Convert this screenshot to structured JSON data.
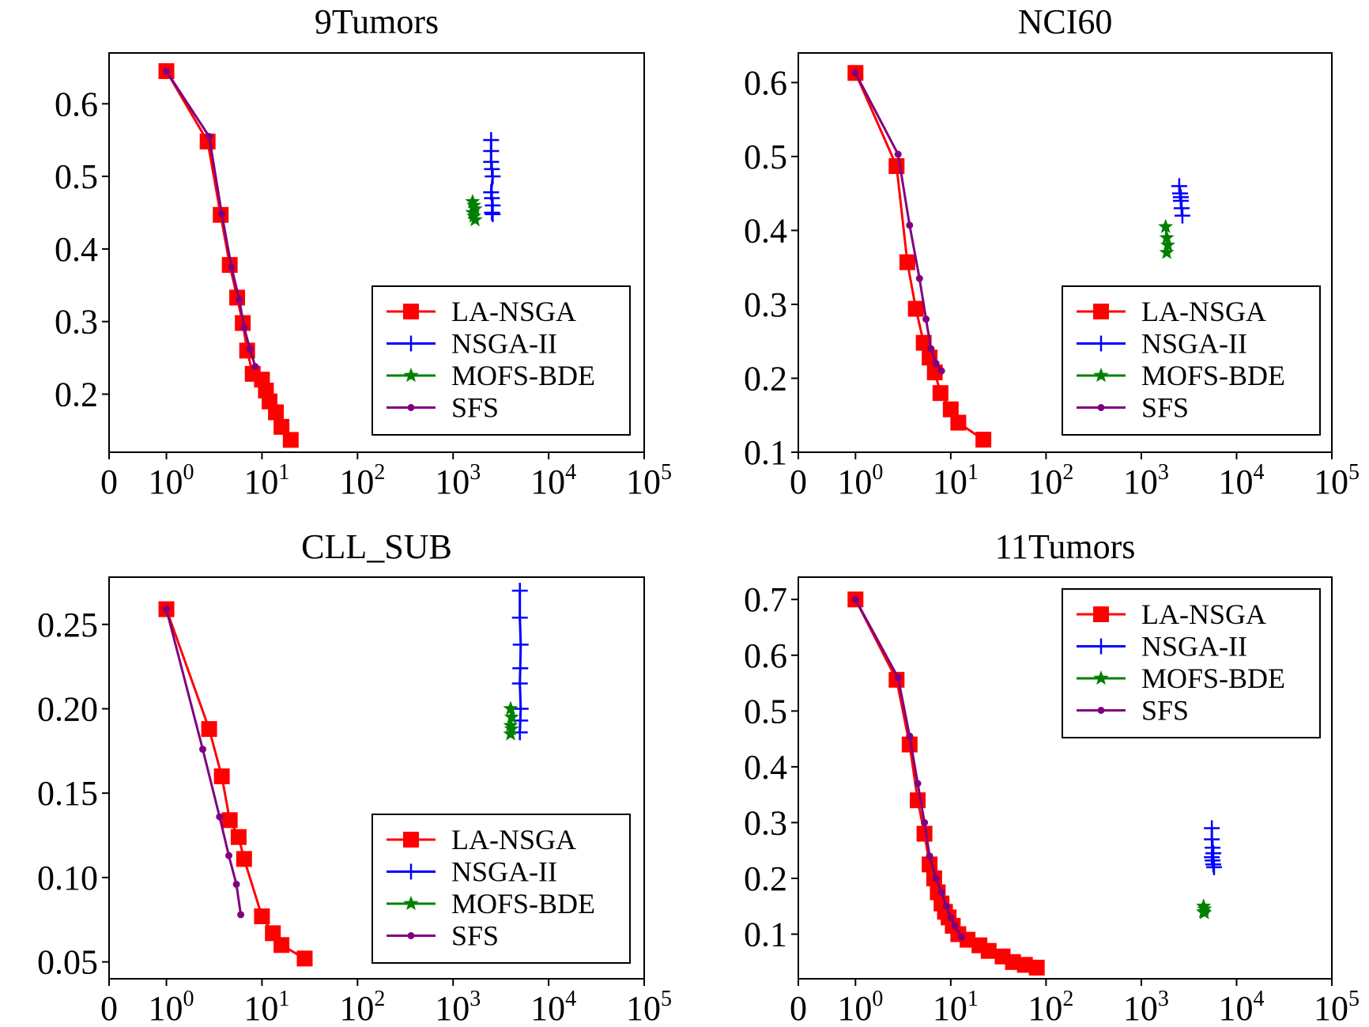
{
  "figure": {
    "legend_entries": [
      {
        "name": "LA-NSGA",
        "color": "#ff0000",
        "marker": "square"
      },
      {
        "name": "NSGA-II",
        "color": "#0000ff",
        "marker": "plus"
      },
      {
        "name": "MOFS-BDE",
        "color": "#008000",
        "marker": "star"
      },
      {
        "name": "SFS",
        "color": "#800080",
        "marker": "dot"
      }
    ]
  },
  "chart_data": [
    {
      "type": "line",
      "title": "9Tumors",
      "xscale": "symlog",
      "xlim": [
        0,
        100000
      ],
      "x_ticks": [
        "0",
        "10^0",
        "10^1",
        "10^2",
        "10^3",
        "10^4",
        "10^5"
      ],
      "ylim": [
        0.12,
        0.67
      ],
      "y_ticks": [
        "0.2",
        "0.3",
        "0.4",
        "0.5",
        "0.6"
      ],
      "legend_position": "lower-right",
      "series": [
        {
          "name": "LA-NSGA",
          "x": [
            1,
            2.7,
            3.7,
            4.6,
            5.5,
            6.3,
            7,
            8,
            10,
            11,
            12,
            14,
            16,
            20
          ],
          "y": [
            0.645,
            0.548,
            0.447,
            0.378,
            0.333,
            0.298,
            0.26,
            0.228,
            0.22,
            0.205,
            0.19,
            0.175,
            0.155,
            0.137
          ]
        },
        {
          "name": "NSGA-II",
          "x": [
            2500,
            2500,
            2500,
            2550,
            2600,
            2500,
            2550,
            2600,
            2550,
            2600
          ],
          "y": [
            0.55,
            0.535,
            0.52,
            0.51,
            0.5,
            0.478,
            0.47,
            0.46,
            0.45,
            0.448
          ]
        },
        {
          "name": "MOFS-BDE",
          "x": [
            1600,
            1650,
            1700,
            1600,
            1650,
            1700
          ],
          "y": [
            0.465,
            0.46,
            0.455,
            0.45,
            0.445,
            0.44
          ]
        },
        {
          "name": "SFS",
          "x": [
            1,
            2.8,
            3.8,
            4.8,
            5.8,
            6.5,
            7.5,
            8.5
          ],
          "y": [
            0.645,
            0.555,
            0.448,
            0.375,
            0.33,
            0.292,
            0.262,
            0.238
          ]
        }
      ]
    },
    {
      "type": "line",
      "title": "NCI60",
      "xscale": "symlog",
      "xlim": [
        0,
        100000
      ],
      "x_ticks": [
        "0",
        "10^0",
        "10^1",
        "10^2",
        "10^3",
        "10^4",
        "10^5"
      ],
      "ylim": [
        0.1,
        0.64
      ],
      "y_ticks": [
        "0.1",
        "0.2",
        "0.3",
        "0.4",
        "0.5",
        "0.6"
      ],
      "legend_position": "lower-right",
      "series": [
        {
          "name": "LA-NSGA",
          "x": [
            1,
            2.7,
            3.5,
            4.3,
            5.2,
            6,
            6.8,
            7.8,
            10,
            12,
            22
          ],
          "y": [
            0.613,
            0.487,
            0.357,
            0.294,
            0.248,
            0.228,
            0.208,
            0.18,
            0.158,
            0.14,
            0.117
          ]
        },
        {
          "name": "NSGA-II",
          "x": [
            2500,
            2550,
            2600,
            2650,
            2700,
            2600
          ],
          "y": [
            0.46,
            0.45,
            0.445,
            0.43,
            0.42,
            0.44
          ]
        },
        {
          "name": "MOFS-BDE",
          "x": [
            1800,
            1850,
            1900,
            1850
          ],
          "y": [
            0.405,
            0.39,
            0.38,
            0.37
          ]
        },
        {
          "name": "SFS",
          "x": [
            1,
            2.8,
            3.7,
            4.7,
            5.5,
            6.2,
            7,
            8
          ],
          "y": [
            0.613,
            0.503,
            0.407,
            0.335,
            0.28,
            0.24,
            0.22,
            0.21
          ]
        }
      ]
    },
    {
      "type": "line",
      "title": "CLL_SUB",
      "xscale": "symlog",
      "xlim": [
        0,
        100000
      ],
      "x_ticks": [
        "0",
        "10^0",
        "10^1",
        "10^2",
        "10^3",
        "10^4",
        "10^5"
      ],
      "ylim": [
        0.04,
        0.278
      ],
      "y_ticks": [
        "0.05",
        "0.10",
        "0.15",
        "0.20",
        "0.25"
      ],
      "legend_position": "lower-right",
      "series": [
        {
          "name": "LA-NSGA",
          "x": [
            1,
            2.8,
            3.8,
            4.6,
            5.7,
            6.5,
            10,
            13,
            16,
            28
          ],
          "y": [
            0.259,
            0.188,
            0.16,
            0.134,
            0.124,
            0.111,
            0.077,
            0.067,
            0.06,
            0.052
          ]
        },
        {
          "name": "NSGA-II",
          "x": [
            5000,
            5000,
            5100,
            5050,
            5000,
            5100,
            5050,
            5000
          ],
          "y": [
            0.27,
            0.254,
            0.238,
            0.224,
            0.215,
            0.2,
            0.193,
            0.186
          ]
        },
        {
          "name": "MOFS-BDE",
          "x": [
            4000,
            4100,
            4000,
            4100,
            4000
          ],
          "y": [
            0.2,
            0.195,
            0.19,
            0.188,
            0.185
          ]
        },
        {
          "name": "SFS",
          "x": [
            1,
            2.4,
            3.6,
            4.5,
            5.4,
            6
          ],
          "y": [
            0.259,
            0.176,
            0.136,
            0.113,
            0.096,
            0.078
          ]
        }
      ]
    },
    {
      "type": "line",
      "title": "11Tumors",
      "xscale": "symlog",
      "xlim": [
        0,
        100000
      ],
      "x_ticks": [
        "0",
        "10^0",
        "10^1",
        "10^2",
        "10^3",
        "10^4",
        "10^5"
      ],
      "ylim": [
        0.02,
        0.74
      ],
      "y_ticks": [
        "0.1",
        "0.2",
        "0.3",
        "0.4",
        "0.5",
        "0.6",
        "0.7"
      ],
      "legend_position": "upper-right",
      "series": [
        {
          "name": "LA-NSGA",
          "x": [
            1,
            2.7,
            3.7,
            4.5,
            5.3,
            6,
            6.7,
            7.3,
            8,
            8.7,
            9.5,
            10.5,
            12,
            15,
            20,
            25,
            35,
            45,
            60,
            80
          ],
          "y": [
            0.7,
            0.556,
            0.44,
            0.34,
            0.28,
            0.225,
            0.2,
            0.175,
            0.155,
            0.14,
            0.13,
            0.115,
            0.1,
            0.09,
            0.08,
            0.07,
            0.06,
            0.05,
            0.045,
            0.04
          ]
        },
        {
          "name": "NSGA-II",
          "x": [
            5500,
            5500,
            5600,
            5700,
            5500,
            5600,
            5700,
            5800
          ],
          "y": [
            0.29,
            0.27,
            0.255,
            0.245,
            0.238,
            0.232,
            0.225,
            0.22
          ]
        },
        {
          "name": "MOFS-BDE",
          "x": [
            4500,
            4600,
            4500,
            4600
          ],
          "y": [
            0.15,
            0.145,
            0.14,
            0.138
          ]
        },
        {
          "name": "SFS",
          "x": [
            1,
            2.8,
            3.7,
            4.5,
            5.3,
            6,
            7,
            8,
            9,
            10,
            11,
            13
          ],
          "y": [
            0.7,
            0.56,
            0.455,
            0.37,
            0.3,
            0.24,
            0.2,
            0.175,
            0.15,
            0.13,
            0.115,
            0.095
          ]
        }
      ]
    }
  ]
}
